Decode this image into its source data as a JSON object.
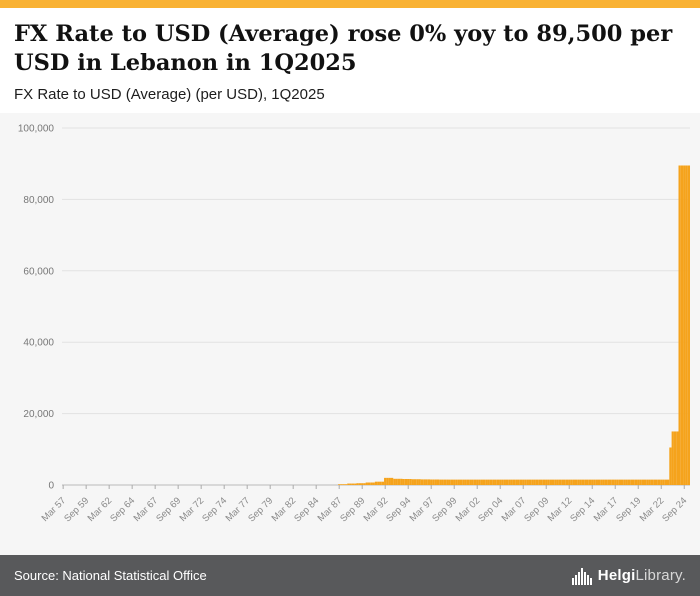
{
  "header": {
    "title": "FX Rate to USD (Average) rose 0% yoy to 89,500 per USD in Lebanon in 1Q2025",
    "subtitle": "FX Rate to USD (Average) (per USD), 1Q2025"
  },
  "footer": {
    "source": "Source: National Statistical Office",
    "brand_bold": "Helgi",
    "brand_light": "Library."
  },
  "colors": {
    "accent": "#f9b234",
    "bar": "#f5a31c",
    "footer_bg": "#58595b",
    "chart_bg": "#f6f6f6"
  },
  "chart_data": {
    "type": "bar",
    "title": "FX Rate to USD (Average) (per USD), 1Q2025",
    "xlabel": "",
    "ylabel": "",
    "ylim": [
      0,
      100000
    ],
    "yticks": [
      0,
      20000,
      40000,
      60000,
      80000,
      100000
    ],
    "ytick_labels": [
      "0",
      "20,000",
      "40,000",
      "60,000",
      "80,000",
      "100,000"
    ],
    "grid": "horizontal",
    "legend": "none",
    "bar_color": "#f5a31c",
    "frequency": "quarterly",
    "x_start": "Mar 1957",
    "x_end": "Mar 2025",
    "xtick_every": 10,
    "xtick_labels": [
      "Mar 57",
      "Sep 59",
      "Mar 62",
      "Sep 64",
      "Mar 67",
      "Sep 69",
      "Mar 72",
      "Sep 74",
      "Mar 77",
      "Sep 79",
      "Mar 82",
      "Sep 84",
      "Mar 87",
      "Sep 89",
      "Mar 92",
      "Sep 94",
      "Mar 97",
      "Sep 99",
      "Mar 02",
      "Sep 04",
      "Mar 07",
      "Sep 09",
      "Mar 12",
      "Sep 14",
      "Mar 17",
      "Sep 19",
      "Mar 22",
      "Sep 24"
    ],
    "latest_point": {
      "label": "1Q2025",
      "value": 89500
    },
    "segments": [
      {
        "period": "1957Q1-1971Q4",
        "quarters": 60,
        "value": 3.2
      },
      {
        "period": "1972Q1-1974Q4",
        "quarters": 12,
        "value": 2.9
      },
      {
        "period": "1975Q1-1981Q4",
        "quarters": 28,
        "value": 3.5
      },
      {
        "period": "1982Q1-1983Q4",
        "quarters": 8,
        "value": 4.6
      },
      {
        "period": "1984",
        "quarters": 4,
        "value": 6.5
      },
      {
        "period": "1985",
        "quarters": 4,
        "value": 16
      },
      {
        "period": "1986",
        "quarters": 4,
        "value": 38
      },
      {
        "period": "1987",
        "quarters": 4,
        "value": 225
      },
      {
        "period": "1988",
        "quarters": 4,
        "value": 410
      },
      {
        "period": "1989",
        "quarters": 4,
        "value": 500
      },
      {
        "period": "1990",
        "quarters": 4,
        "value": 700
      },
      {
        "period": "1991",
        "quarters": 4,
        "value": 930
      },
      {
        "period": "1992",
        "quarters": 4,
        "value": 2000
      },
      {
        "period": "1993",
        "quarters": 4,
        "value": 1740
      },
      {
        "period": "1994",
        "quarters": 4,
        "value": 1680
      },
      {
        "period": "1995",
        "quarters": 4,
        "value": 1620
      },
      {
        "period": "1996",
        "quarters": 4,
        "value": 1570
      },
      {
        "period": "1997",
        "quarters": 4,
        "value": 1540
      },
      {
        "period": "1998",
        "quarters": 4,
        "value": 1516
      },
      {
        "period": "1999Q1-2022Q4",
        "quarters": 96,
        "value": 1507.5
      },
      {
        "period": "2023Q1",
        "quarters": 1,
        "value": 10511
      },
      {
        "period": "2023Q2-2023Q4",
        "quarters": 3,
        "value": 15000
      },
      {
        "period": "2024Q1-2025Q1",
        "quarters": 5,
        "value": 89500
      }
    ]
  }
}
